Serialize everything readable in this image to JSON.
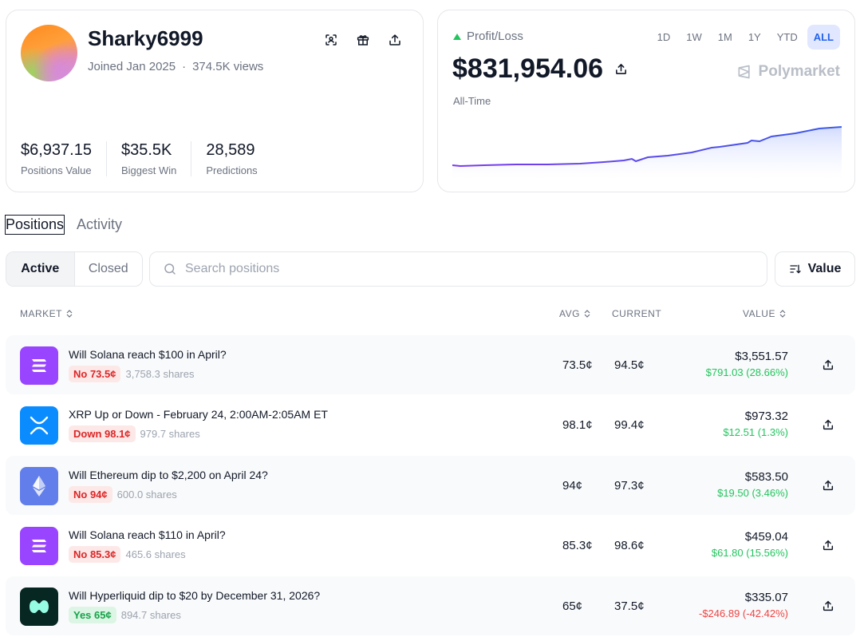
{
  "profile": {
    "username": "Sharky6999",
    "joined": "Joined Jan 2025",
    "views": "374.5K views",
    "stats": [
      {
        "value": "$6,937.15",
        "label": "Positions Value"
      },
      {
        "value": "$35.5K",
        "label": "Biggest Win"
      },
      {
        "value": "28,589",
        "label": "Predictions"
      }
    ]
  },
  "pnl": {
    "title": "Profit/Loss",
    "value": "$831,954.06",
    "period": "All-Time",
    "brand": "Polymarket",
    "ranges": [
      "1D",
      "1W",
      "1M",
      "1Y",
      "YTD",
      "ALL"
    ],
    "active_range": "ALL"
  },
  "tabs": [
    "Positions",
    "Activity"
  ],
  "filters": {
    "active": "Active",
    "closed": "Closed"
  },
  "search": {
    "placeholder": "Search positions"
  },
  "sort": {
    "label": "Value"
  },
  "columns": {
    "market": "MARKET",
    "avg": "AVG",
    "current": "CURRENT",
    "value": "VALUE"
  },
  "positions": [
    {
      "title": "Will Solana reach $100 in April?",
      "outcome": "No 73.5¢",
      "kind": "no",
      "shares": "3,758.3 shares",
      "avg": "73.5¢",
      "current": "94.5¢",
      "value": "$3,551.57",
      "change": "$791.03 (28.66%)",
      "dir": "up",
      "icon": "solana-icon"
    },
    {
      "title": "XRP Up or Down - February 24, 2:00AM-2:05AM ET",
      "outcome": "Down 98.1¢",
      "kind": "no",
      "shares": "979.7 shares",
      "avg": "98.1¢",
      "current": "99.4¢",
      "value": "$973.32",
      "change": "$12.51 (1.3%)",
      "dir": "up",
      "icon": "xrp-icon"
    },
    {
      "title": "Will Ethereum dip to $2,200 on April 24?",
      "outcome": "No 94¢",
      "kind": "no",
      "shares": "600.0 shares",
      "avg": "94¢",
      "current": "97.3¢",
      "value": "$583.50",
      "change": "$19.50 (3.46%)",
      "dir": "up",
      "icon": "ethereum-icon"
    },
    {
      "title": "Will Solana reach $110 in April?",
      "outcome": "No 85.3¢",
      "kind": "no",
      "shares": "465.6 shares",
      "avg": "85.3¢",
      "current": "98.6¢",
      "value": "$459.04",
      "change": "$61.80 (15.56%)",
      "dir": "up",
      "icon": "solana-icon"
    },
    {
      "title": "Will Hyperliquid dip to $20 by December 31, 2026?",
      "outcome": "Yes 65¢",
      "kind": "yes",
      "shares": "894.7 shares",
      "avg": "65¢",
      "current": "37.5¢",
      "value": "$335.07",
      "change": "-$246.89 (-42.42%)",
      "dir": "down",
      "icon": "hyperliquid-icon"
    }
  ],
  "colors": {
    "accent": "#2563eb",
    "positive": "#22c55e",
    "negative": "#ef4444",
    "solana": "#9945ff",
    "xrp": "#0a8cff",
    "ethereum": "#627eea",
    "hyperliquid": "#072723"
  }
}
